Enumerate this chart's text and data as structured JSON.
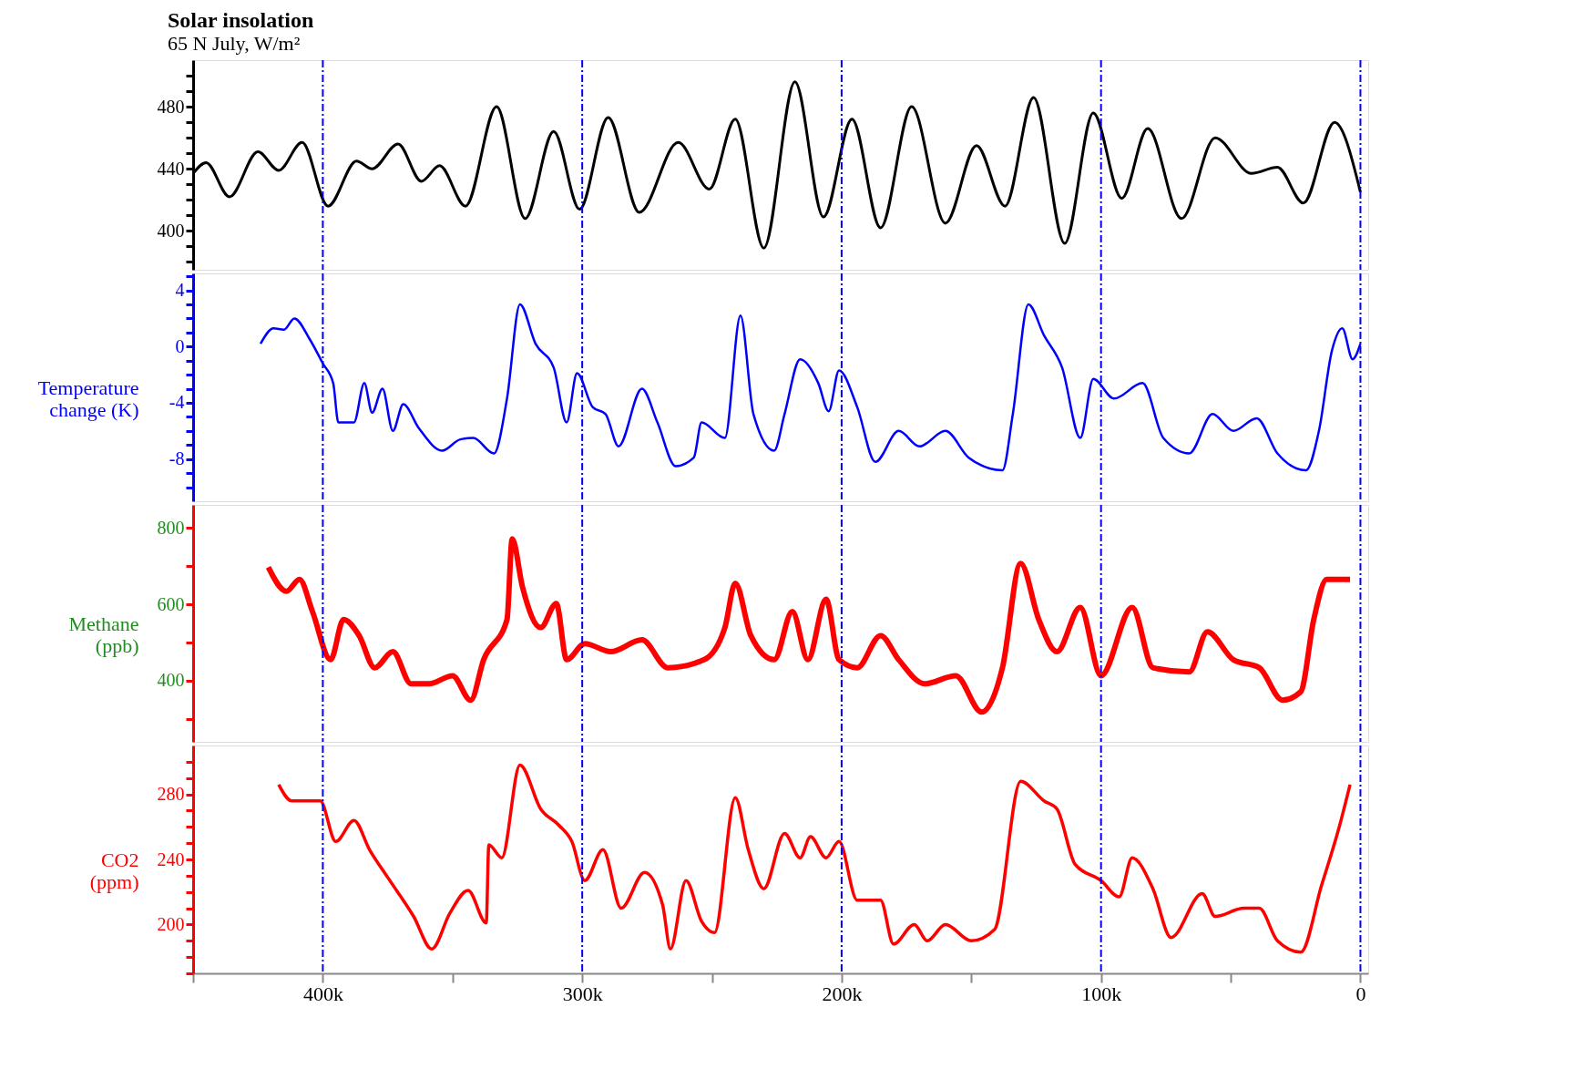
{
  "chart_data": [
    {
      "type": "line",
      "title": "Solar insolation",
      "subtitle": "65 N July, W/m²",
      "color": "#000000",
      "line_style": "solid",
      "grid": false,
      "tick_labels": "y",
      "x": [
        450,
        445,
        436,
        425,
        417,
        408,
        398,
        387,
        381,
        371,
        362,
        355,
        345,
        333,
        322,
        311,
        301,
        290,
        278,
        263,
        251,
        241,
        230,
        218,
        207,
        196,
        185,
        173,
        160,
        148,
        137,
        126,
        114,
        103,
        92,
        82,
        69,
        56,
        42,
        32,
        22,
        10,
        0
      ],
      "values": [
        437,
        444,
        422,
        451,
        439,
        457,
        416,
        445,
        440,
        456,
        432,
        442,
        416,
        480,
        408,
        464,
        414,
        473,
        412,
        457,
        427,
        472,
        389,
        496,
        409,
        472,
        402,
        480,
        405,
        455,
        416,
        486,
        392,
        476,
        421,
        466,
        408,
        460,
        437,
        441,
        418,
        470,
        425
      ],
      "xlim": [
        450,
        -3
      ],
      "ylim": [
        375,
        510
      ],
      "yticks": [
        {
          "value": 380,
          "label": null
        },
        {
          "value": 390,
          "label": null
        },
        400,
        {
          "value": 410,
          "label": null
        },
        {
          "value": 420,
          "label": null
        },
        {
          "value": 430,
          "label": null
        },
        440,
        {
          "value": 450,
          "label": null
        },
        {
          "value": 460,
          "label": null
        },
        {
          "value": 470,
          "label": null
        },
        480,
        {
          "value": 490,
          "label": null
        },
        {
          "value": 500,
          "label": null
        }
      ],
      "ref_lines": [
        {
          "axis": "x",
          "value": 400,
          "color": "#0000ff",
          "line_style": "dashed"
        },
        {
          "axis": "x",
          "value": 300,
          "color": "#0000ff",
          "line_style": "dashed"
        },
        {
          "axis": "x",
          "value": 200,
          "color": "#0000ff",
          "line_style": "dashed"
        },
        {
          "axis": "x",
          "value": 100,
          "color": "#0000ff",
          "line_style": "dashed"
        },
        {
          "axis": "x",
          "value": 0,
          "color": "#0000ff",
          "line_style": "dashed"
        }
      ]
    },
    {
      "type": "line",
      "ylabel": "Temperature change (K)",
      "color": "#0000ff",
      "line_style": "solid",
      "grid": false,
      "tick_labels": "y",
      "x": [
        424,
        419,
        415,
        411,
        405,
        400,
        396,
        394,
        388,
        384,
        381,
        377,
        373,
        369,
        363,
        354,
        347,
        342,
        334,
        329,
        324,
        318,
        311,
        306,
        302,
        296,
        291,
        286,
        277,
        271,
        264,
        257,
        254,
        245,
        239,
        234,
        226,
        222,
        216,
        209,
        205,
        201,
        194,
        187,
        178,
        170,
        160,
        151,
        138,
        134,
        128,
        122,
        115,
        108,
        103,
        95,
        84,
        76,
        66,
        57,
        49,
        40,
        32,
        21,
        16,
        11,
        7,
        3,
        0
      ],
      "values": [
        0.2,
        1.3,
        1.2,
        2.0,
        0.5,
        -1.2,
        -2.6,
        -5.4,
        -5.4,
        -2.6,
        -4.7,
        -3.0,
        -6.0,
        -4.1,
        -5.8,
        -7.4,
        -6.6,
        -6.5,
        -7.6,
        -3.7,
        3.0,
        0.2,
        -1.5,
        -5.4,
        -1.9,
        -4.3,
        -4.8,
        -7.1,
        -3.0,
        -5.4,
        -8.5,
        -7.9,
        -5.4,
        -6.5,
        2.2,
        -4.8,
        -7.4,
        -4.8,
        -0.9,
        -2.6,
        -4.6,
        -1.7,
        -4.3,
        -8.2,
        -6.0,
        -7.1,
        -6.0,
        -7.9,
        -8.8,
        -4.8,
        3.0,
        0.8,
        -1.5,
        -6.5,
        -2.3,
        -3.7,
        -2.6,
        -6.5,
        -7.6,
        -4.8,
        -6.0,
        -5.1,
        -7.6,
        -8.8,
        -6.0,
        -0.3,
        1.3,
        -0.9,
        0.2
      ],
      "xlim": [
        450,
        -3
      ],
      "ylim": [
        -11,
        5.2
      ],
      "yticks": [
        {
          "value": -10,
          "label": null
        },
        {
          "value": -9,
          "label": null
        },
        -8,
        {
          "value": -7,
          "label": null
        },
        {
          "value": -6,
          "label": null
        },
        {
          "value": -5,
          "label": null
        },
        -4,
        {
          "value": -3,
          "label": null
        },
        {
          "value": -2,
          "label": null
        },
        {
          "value": -1,
          "label": null
        },
        0,
        {
          "value": 1,
          "label": null
        },
        {
          "value": 2,
          "label": null
        },
        {
          "value": 3,
          "label": null
        },
        4,
        {
          "value": 5,
          "label": null
        }
      ],
      "ref_lines": [
        {
          "axis": "x",
          "value": 400,
          "color": "#0000ff",
          "line_style": "dashed"
        },
        {
          "axis": "x",
          "value": 300,
          "color": "#0000ff",
          "line_style": "dashed"
        },
        {
          "axis": "x",
          "value": 200,
          "color": "#0000ff",
          "line_style": "dashed"
        },
        {
          "axis": "x",
          "value": 100,
          "color": "#0000ff",
          "line_style": "dashed"
        },
        {
          "axis": "x",
          "value": 0,
          "color": "#0000ff",
          "line_style": "dashed"
        }
      ]
    },
    {
      "type": "line",
      "ylabel": "Methane (ppb)",
      "color": "#ff0000",
      "line_style": "solid",
      "grid": false,
      "tick_labels": "y",
      "x": [
        421,
        414,
        409,
        404,
        397,
        392,
        386,
        380,
        373,
        366,
        359,
        350,
        343,
        338,
        329,
        327,
        323,
        316,
        310,
        306,
        299,
        289,
        277,
        267,
        253,
        245,
        241,
        235,
        226,
        219,
        213,
        206,
        201,
        194,
        185,
        178,
        168,
        156,
        146,
        138,
        131,
        124,
        117,
        108,
        100,
        88,
        80,
        66,
        59,
        49,
        39,
        30,
        23,
        18,
        13,
        4
      ],
      "values": [
        697,
        634,
        665,
        581,
        455,
        560,
        518,
        434,
        476,
        392,
        392,
        413,
        349,
        455,
        560,
        771,
        644,
        539,
        602,
        455,
        497,
        476,
        507,
        434,
        455,
        539,
        655,
        518,
        455,
        581,
        455,
        613,
        455,
        434,
        518,
        455,
        392,
        413,
        318,
        434,
        707,
        560,
        476,
        592,
        413,
        592,
        434,
        423,
        528,
        455,
        434,
        349,
        371,
        560,
        665,
        665
      ],
      "xlim": [
        450,
        -3
      ],
      "ylim": [
        240,
        860
      ],
      "yticks": [
        {
          "value": 300,
          "label": null
        },
        400,
        {
          "value": 500,
          "label": null
        },
        600,
        {
          "value": 700,
          "label": null
        },
        800
      ],
      "ref_lines": [
        {
          "axis": "x",
          "value": 400,
          "color": "#0000ff",
          "line_style": "dashed"
        },
        {
          "axis": "x",
          "value": 300,
          "color": "#0000ff",
          "line_style": "dashed"
        },
        {
          "axis": "x",
          "value": 200,
          "color": "#0000ff",
          "line_style": "dashed"
        },
        {
          "axis": "x",
          "value": 100,
          "color": "#0000ff",
          "line_style": "dashed"
        },
        {
          "axis": "x",
          "value": 0,
          "color": "#0000ff",
          "line_style": "dashed"
        }
      ]
    },
    {
      "type": "line",
      "ylabel": "CO2 (ppm)",
      "color": "#ff0000",
      "line_style": "solid",
      "grid": false,
      "x": [
        417,
        412,
        401,
        395,
        388,
        382,
        375,
        365,
        358,
        351,
        344,
        337,
        336,
        331,
        324,
        316,
        309,
        304,
        299,
        292,
        285,
        276,
        269,
        266,
        260,
        254,
        249,
        241,
        236,
        230,
        222,
        216,
        212,
        206,
        201,
        194,
        185,
        180,
        172,
        167,
        160,
        150,
        141,
        131,
        122,
        117,
        110,
        100,
        93,
        88,
        80,
        73,
        61,
        56,
        45,
        39,
        32,
        23,
        15,
        8,
        4
      ],
      "values": [
        286,
        276,
        276,
        251,
        264,
        246,
        229,
        205,
        185,
        207,
        221,
        201,
        249,
        241,
        298,
        271,
        261,
        251,
        227,
        246,
        210,
        232,
        212,
        185,
        227,
        202,
        195,
        278,
        246,
        222,
        256,
        241,
        254,
        241,
        251,
        215,
        215,
        188,
        200,
        190,
        200,
        190,
        197,
        288,
        276,
        271,
        237,
        227,
        217,
        241,
        222,
        192,
        219,
        205,
        210,
        210,
        190,
        183,
        224,
        261,
        286
      ],
      "xlim": [
        450,
        -3
      ],
      "xticks": [
        {
          "value": 450,
          "label": null
        },
        {
          "value": 400,
          "label": "400k"
        },
        {
          "value": 350,
          "label": null
        },
        {
          "value": 300,
          "label": "300k"
        },
        {
          "value": 250,
          "label": null
        },
        {
          "value": 200,
          "label": "200k"
        },
        {
          "value": 150,
          "label": null
        },
        {
          "value": 100,
          "label": "100k"
        },
        {
          "value": 50,
          "label": null
        },
        0
      ],
      "ylim": [
        170,
        310
      ],
      "yticks": [
        {
          "value": 170,
          "label": null
        },
        {
          "value": 180,
          "label": null
        },
        {
          "value": 190,
          "label": null
        },
        200,
        {
          "value": 210,
          "label": null
        },
        {
          "value": 220,
          "label": null
        },
        {
          "value": 230,
          "label": null
        },
        240,
        {
          "value": 250,
          "label": null
        },
        {
          "value": 260,
          "label": null
        },
        {
          "value": 270,
          "label": null
        },
        280,
        {
          "value": 290,
          "label": null
        },
        {
          "value": 300,
          "label": null
        }
      ],
      "ref_lines": [
        {
          "axis": "x",
          "value": 400,
          "color": "#0000ff",
          "line_style": "dashed"
        },
        {
          "axis": "x",
          "value": 300,
          "color": "#0000ff",
          "line_style": "dashed"
        },
        {
          "axis": "x",
          "value": 200,
          "color": "#0000ff",
          "line_style": "dashed"
        },
        {
          "axis": "x",
          "value": 100,
          "color": "#0000ff",
          "line_style": "dashed"
        },
        {
          "axis": "x",
          "value": 0,
          "color": "#0000ff",
          "line_style": "dashed"
        }
      ]
    }
  ]
}
